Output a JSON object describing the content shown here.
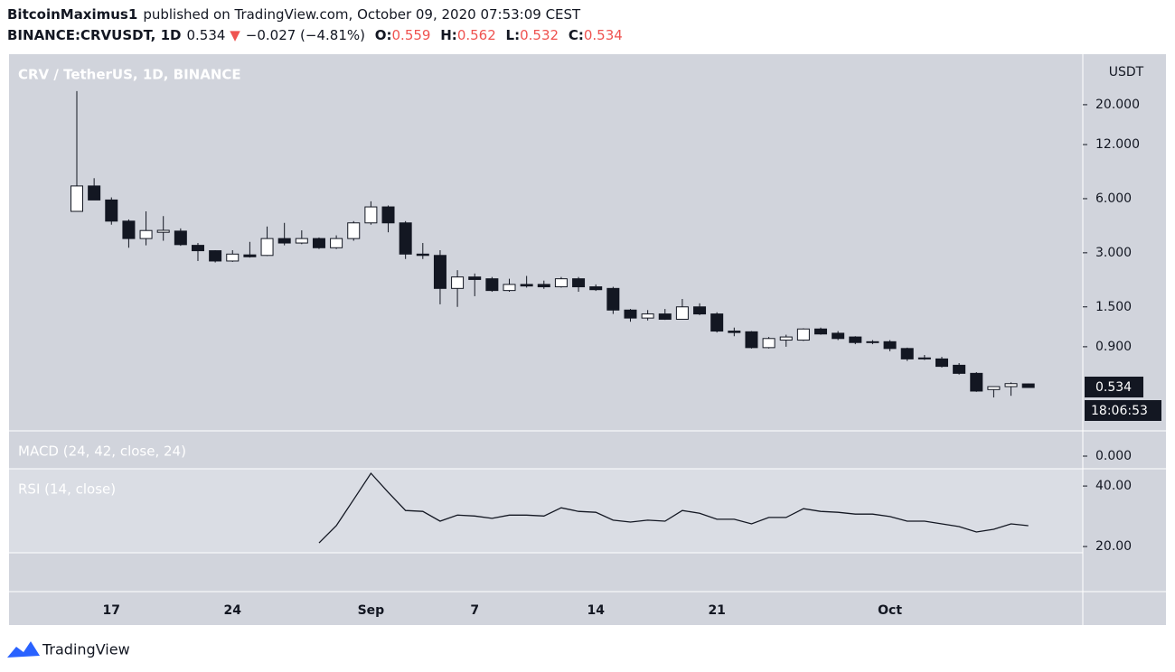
{
  "header": {
    "author": "BitcoinMaximus1",
    "published": "published on TradingView.com, October 09, 2020 07:53:09 CEST",
    "symbol": "BINANCE:CRVUSDT, 1D",
    "price": "0.534",
    "arrow": "▼",
    "change": "−0.027 (−4.81%)",
    "o_label": "O:",
    "o": "0.559",
    "h_label": "H:",
    "h": "0.562",
    "l_label": "L:",
    "l": "0.532",
    "c_label": "C:",
    "c": "0.534"
  },
  "chart_data": {
    "type": "candlestick",
    "title": "CRV / TetherUS, 1D, BINANCE",
    "y_axis_label": "USDT",
    "categories": [
      null,
      null,
      "17",
      null,
      null,
      null,
      null,
      null,
      null,
      "24",
      null,
      null,
      null,
      null,
      null,
      null,
      null,
      "Sep",
      null,
      null,
      null,
      null,
      null,
      "7",
      null,
      null,
      null,
      null,
      null,
      null,
      "14",
      null,
      null,
      null,
      null,
      null,
      null,
      "21",
      null,
      null,
      null,
      null,
      null,
      null,
      null,
      null,
      null,
      "Oct",
      null,
      null,
      null,
      null,
      null,
      null,
      null,
      null
    ],
    "open": [
      5.1,
      7.06,
      5.9,
      4.5,
      3.6,
      3.9,
      3.96,
      3.3,
      3.08,
      2.7,
      2.92,
      2.9,
      3.6,
      3.4,
      3.6,
      3.2,
      3.6,
      4.4,
      5.4,
      4.4,
      2.95,
      2.9,
      1.9,
      2.2,
      2.15,
      1.85,
      2.0,
      2.0,
      1.94,
      2.15,
      1.94,
      1.9,
      1.44,
      1.3,
      1.37,
      1.28,
      1.5,
      1.37,
      1.1,
      1.09,
      0.89,
      0.98,
      0.98,
      1.13,
      1.07,
      1.02,
      0.96,
      0.96,
      0.88,
      0.78,
      0.77,
      0.71,
      0.64,
      0.52,
      0.54,
      0.559
    ],
    "high": [
      23.8,
      7.8,
      6.1,
      4.6,
      5.1,
      4.8,
      4.1,
      3.4,
      3.1,
      3.1,
      3.45,
      4.2,
      4.4,
      4.0,
      3.65,
      3.75,
      4.5,
      5.8,
      5.5,
      4.5,
      3.4,
      3.1,
      2.4,
      2.3,
      2.2,
      2.15,
      2.23,
      2.1,
      2.2,
      2.2,
      2.0,
      1.94,
      1.46,
      1.44,
      1.46,
      1.66,
      1.57,
      1.4,
      1.15,
      1.1,
      1.02,
      1.05,
      1.14,
      1.15,
      1.1,
      1.03,
      0.98,
      0.98,
      0.89,
      0.81,
      0.79,
      0.73,
      0.65,
      0.54,
      0.57,
      0.562
    ],
    "low": [
      5.1,
      5.9,
      4.3,
      3.2,
      3.3,
      3.5,
      3.28,
      2.7,
      2.65,
      2.67,
      2.82,
      2.88,
      3.3,
      3.35,
      3.15,
      3.15,
      3.5,
      4.3,
      3.9,
      2.77,
      2.77,
      1.55,
      1.5,
      1.72,
      1.82,
      1.82,
      1.92,
      1.89,
      1.92,
      1.82,
      1.84,
      1.37,
      1.24,
      1.26,
      1.27,
      1.28,
      1.35,
      1.08,
      1.03,
      0.88,
      0.88,
      0.9,
      0.97,
      1.05,
      0.98,
      0.93,
      0.93,
      0.85,
      0.75,
      0.76,
      0.69,
      0.63,
      0.505,
      0.47,
      0.48,
      0.532
    ],
    "close": [
      7.06,
      5.9,
      4.5,
      3.6,
      3.99,
      4.0,
      3.33,
      3.08,
      2.7,
      2.95,
      2.85,
      3.6,
      3.4,
      3.6,
      3.2,
      3.6,
      4.4,
      5.4,
      4.4,
      2.95,
      2.9,
      1.9,
      2.2,
      2.13,
      1.85,
      2.0,
      1.96,
      1.94,
      2.15,
      1.94,
      1.87,
      1.44,
      1.3,
      1.37,
      1.28,
      1.5,
      1.37,
      1.1,
      1.08,
      0.89,
      1.0,
      1.02,
      1.13,
      1.06,
      1.0,
      0.95,
      0.95,
      0.88,
      0.77,
      0.77,
      0.7,
      0.64,
      0.51,
      0.54,
      0.561,
      0.534
    ],
    "up_color": "#ffffff",
    "down_color": "#131722",
    "log_scale": true,
    "ylim": [
      0.31,
      38.2
    ],
    "yticks": [
      {
        "value": 20,
        "label": "20.000"
      },
      {
        "value": 12,
        "label": "12.000"
      },
      {
        "value": 6,
        "label": "6.000"
      },
      {
        "value": 3,
        "label": "3.000"
      },
      {
        "value": 1.5,
        "label": "1.500"
      },
      {
        "value": 0.9,
        "label": "0.900"
      }
    ],
    "last_price_label": "0.534",
    "countdown": "18:06:53",
    "macd": {
      "title": "MACD (24, 42, close, 24)",
      "ylim": [
        -0.05,
        0.1
      ],
      "yticks": [
        {
          "value": 0,
          "label": "0.000"
        }
      ]
    },
    "rsi": {
      "title": "RSI (14, close)",
      "color": "#131722",
      "ylim": [
        5.1,
        45.7
      ],
      "yticks": [
        {
          "value": 40,
          "label": "40.00"
        },
        {
          "value": 20,
          "label": "20.00"
        }
      ],
      "values": [
        null,
        null,
        null,
        null,
        null,
        null,
        null,
        null,
        null,
        null,
        null,
        null,
        null,
        null,
        21.2,
        26.9,
        35.5,
        44.2,
        37.9,
        31.9,
        31.6,
        28.4,
        30.4,
        30.1,
        29.3,
        30.4,
        30.4,
        30.1,
        32.8,
        31.6,
        31.3,
        28.7,
        28.1,
        28.7,
        28.4,
        31.9,
        31.0,
        29.0,
        29.0,
        27.5,
        29.6,
        29.6,
        32.5,
        31.6,
        31.3,
        30.7,
        30.7,
        29.9,
        28.4,
        28.4,
        27.5,
        26.6,
        24.8,
        25.7,
        27.5,
        26.9
      ]
    }
  },
  "footer": {
    "brand": "TradingView"
  }
}
